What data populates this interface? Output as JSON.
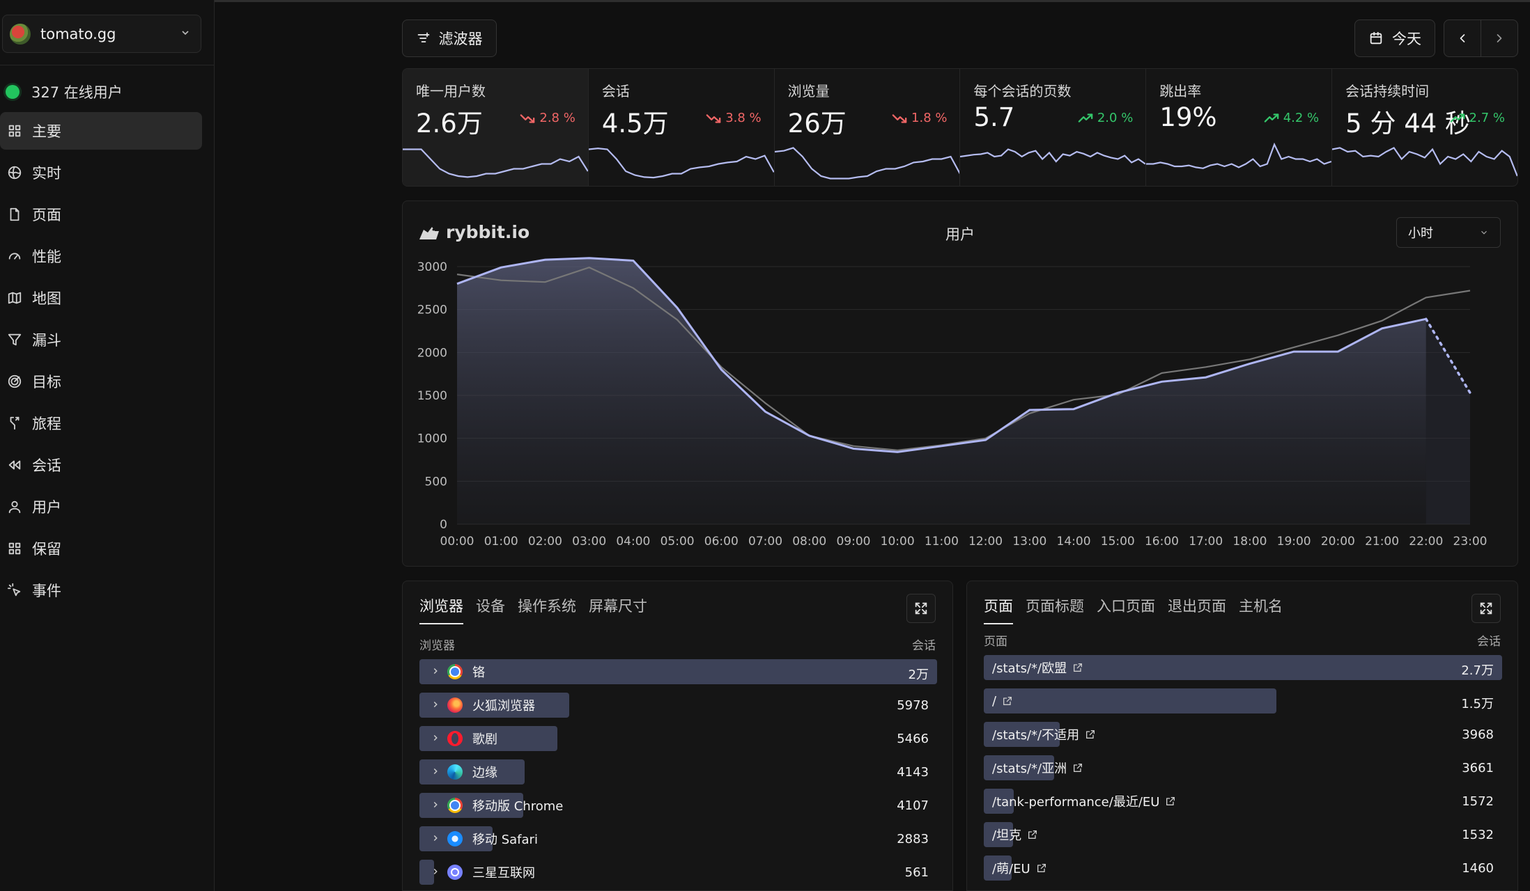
{
  "site": {
    "name": "tomato.gg"
  },
  "online": {
    "count_label": "327 在线用户"
  },
  "nav": [
    {
      "label": "主要",
      "icon": "grid-icon",
      "active": true
    },
    {
      "label": "实时",
      "icon": "globe-icon"
    },
    {
      "label": "页面",
      "icon": "file-icon"
    },
    {
      "label": "性能",
      "icon": "gauge-icon"
    },
    {
      "label": "地图",
      "icon": "map-icon"
    },
    {
      "label": "漏斗",
      "icon": "funnel-icon"
    },
    {
      "label": "目标",
      "icon": "target-icon"
    },
    {
      "label": "旅程",
      "icon": "split-icon"
    },
    {
      "label": "会话",
      "icon": "rewind-icon"
    },
    {
      "label": "用户",
      "icon": "user-icon"
    },
    {
      "label": "保留",
      "icon": "grid-icon"
    },
    {
      "label": "事件",
      "icon": "sparkle-cursor-icon"
    }
  ],
  "header": {
    "filter_label": "滤波器",
    "date_label": "今天"
  },
  "stats": [
    {
      "label": "唯一用户数",
      "value": "2.6万",
      "change": "2.8 %",
      "trend": "down",
      "spark": [
        0.75,
        0.75,
        0.75,
        0.55,
        0.35,
        0.25,
        0.2,
        0.18,
        0.2,
        0.25,
        0.25,
        0.3,
        0.35,
        0.35,
        0.4,
        0.45,
        0.45,
        0.55,
        0.5,
        0.6,
        0.3
      ]
    },
    {
      "label": "会话",
      "value": "4.5万",
      "change": "3.8 %",
      "trend": "down",
      "spark": [
        0.75,
        0.77,
        0.75,
        0.55,
        0.3,
        0.22,
        0.18,
        0.17,
        0.2,
        0.25,
        0.25,
        0.35,
        0.38,
        0.4,
        0.45,
        0.48,
        0.5,
        0.6,
        0.55,
        0.62,
        0.28
      ]
    },
    {
      "label": "浏览量",
      "value": "26万",
      "change": "1.8 %",
      "trend": "down",
      "spark": [
        0.7,
        0.72,
        0.78,
        0.6,
        0.35,
        0.2,
        0.15,
        0.15,
        0.15,
        0.18,
        0.2,
        0.3,
        0.35,
        0.35,
        0.4,
        0.48,
        0.5,
        0.55,
        0.55,
        0.6,
        0.25
      ]
    },
    {
      "label": "每个会话的页数",
      "value": "5.7",
      "change": "2.0 %",
      "trend": "up",
      "spark": [
        0.6,
        0.62,
        0.64,
        0.65,
        0.68,
        0.6,
        0.62,
        0.75,
        0.7,
        0.6,
        0.68,
        0.72,
        0.55,
        0.68,
        0.5,
        0.65,
        0.62,
        0.7,
        0.66,
        0.6,
        0.68,
        0.62,
        0.58,
        0.55,
        0.62,
        0.48,
        0.55,
        0.45
      ]
    },
    {
      "label": "跳出率",
      "value": "19%",
      "change": "4.2 %",
      "trend": "up",
      "spark": [
        0.45,
        0.45,
        0.48,
        0.45,
        0.4,
        0.4,
        0.42,
        0.38,
        0.36,
        0.42,
        0.45,
        0.4,
        0.45,
        0.38,
        0.45,
        0.55,
        0.4,
        0.45,
        0.85,
        0.55,
        0.6,
        0.55,
        0.55,
        0.5,
        0.55,
        0.45,
        0.5
      ]
    },
    {
      "label": "会话持续时间",
      "value": "5 分 44 秒",
      "change": "2.7 %",
      "trend": "up",
      "spark": [
        0.75,
        0.78,
        0.7,
        0.72,
        0.6,
        0.62,
        0.6,
        0.7,
        0.78,
        0.55,
        0.7,
        0.65,
        0.58,
        0.75,
        0.45,
        0.6,
        0.55,
        0.65,
        0.5,
        0.7,
        0.6,
        0.55,
        0.72,
        0.6,
        0.2
      ]
    }
  ],
  "chart_card": {
    "brand": "rybbit.io",
    "title": "用户",
    "bucket": "小时"
  },
  "chart_data": {
    "type": "line",
    "x": [
      "00:00",
      "01:00",
      "02:00",
      "03:00",
      "04:00",
      "05:00",
      "06:00",
      "07:00",
      "08:00",
      "09:00",
      "10:00",
      "11:00",
      "12:00",
      "13:00",
      "14:00",
      "15:00",
      "16:00",
      "17:00",
      "18:00",
      "19:00",
      "20:00",
      "21:00",
      "22:00",
      "23:00"
    ],
    "series": [
      {
        "values": [
          2800,
          2990,
          3080,
          3100,
          3070,
          2520,
          1800,
          1310,
          1030,
          880,
          840,
          910,
          980,
          1330,
          1340,
          1530,
          1660,
          1710,
          1870,
          2010,
          2010,
          2280,
          2390,
          1530
        ]
      },
      {
        "values": [
          2910,
          2840,
          2820,
          2990,
          2750,
          2380,
          1830,
          1410,
          1030,
          910,
          860,
          920,
          1000,
          1290,
          1450,
          1510,
          1760,
          1830,
          1920,
          2060,
          2200,
          2370,
          2640,
          2720
        ]
      }
    ],
    "ylim": [
      0,
      3000
    ],
    "yticks": [
      0,
      500,
      1000,
      1500,
      2000,
      2500,
      3000
    ],
    "grid": true
  },
  "browsers_panel": {
    "tabs": [
      "浏览器",
      "设备",
      "操作系统",
      "屏幕尺寸"
    ],
    "col_left": "浏览器",
    "col_right": "会话",
    "rows": [
      {
        "name": "铬",
        "value": "2万",
        "icon": "chrome-icon",
        "fraction": 1.0
      },
      {
        "name": "火狐浏览器",
        "value": "5978",
        "icon": "firefox-icon",
        "fraction": 0.29
      },
      {
        "name": "歌剧",
        "value": "5466",
        "icon": "opera-icon",
        "fraction": 0.267
      },
      {
        "name": "边缘",
        "value": "4143",
        "icon": "edge-icon",
        "fraction": 0.203
      },
      {
        "name": "移动版 Chrome",
        "value": "4107",
        "icon": "chrome-icon",
        "fraction": 0.201
      },
      {
        "name": "移动 Safari",
        "value": "2883",
        "icon": "safari-icon",
        "fraction": 0.141
      },
      {
        "name": "三星互联网",
        "value": "561",
        "icon": "samsung-icon",
        "fraction": 0.028
      }
    ]
  },
  "pages_panel": {
    "tabs": [
      "页面",
      "页面标题",
      "入口页面",
      "退出页面",
      "主机名"
    ],
    "col_left": "页面",
    "col_right": "会话",
    "rows": [
      {
        "name": "/stats/*/欧盟",
        "value": "2.7万",
        "fraction": 1.0
      },
      {
        "name": "/",
        "value": "1.5万",
        "fraction": 0.565
      },
      {
        "name": "/stats/*/不适用",
        "value": "3968",
        "fraction": 0.147
      },
      {
        "name": "/stats/*/亚洲",
        "value": "3661",
        "fraction": 0.136
      },
      {
        "name": "/tank-performance/最近/EU",
        "value": "1572",
        "fraction": 0.058
      },
      {
        "name": "/坦克",
        "value": "1532",
        "fraction": 0.057
      },
      {
        "name": "/萌/EU",
        "value": "1460",
        "fraction": 0.054
      }
    ]
  }
}
